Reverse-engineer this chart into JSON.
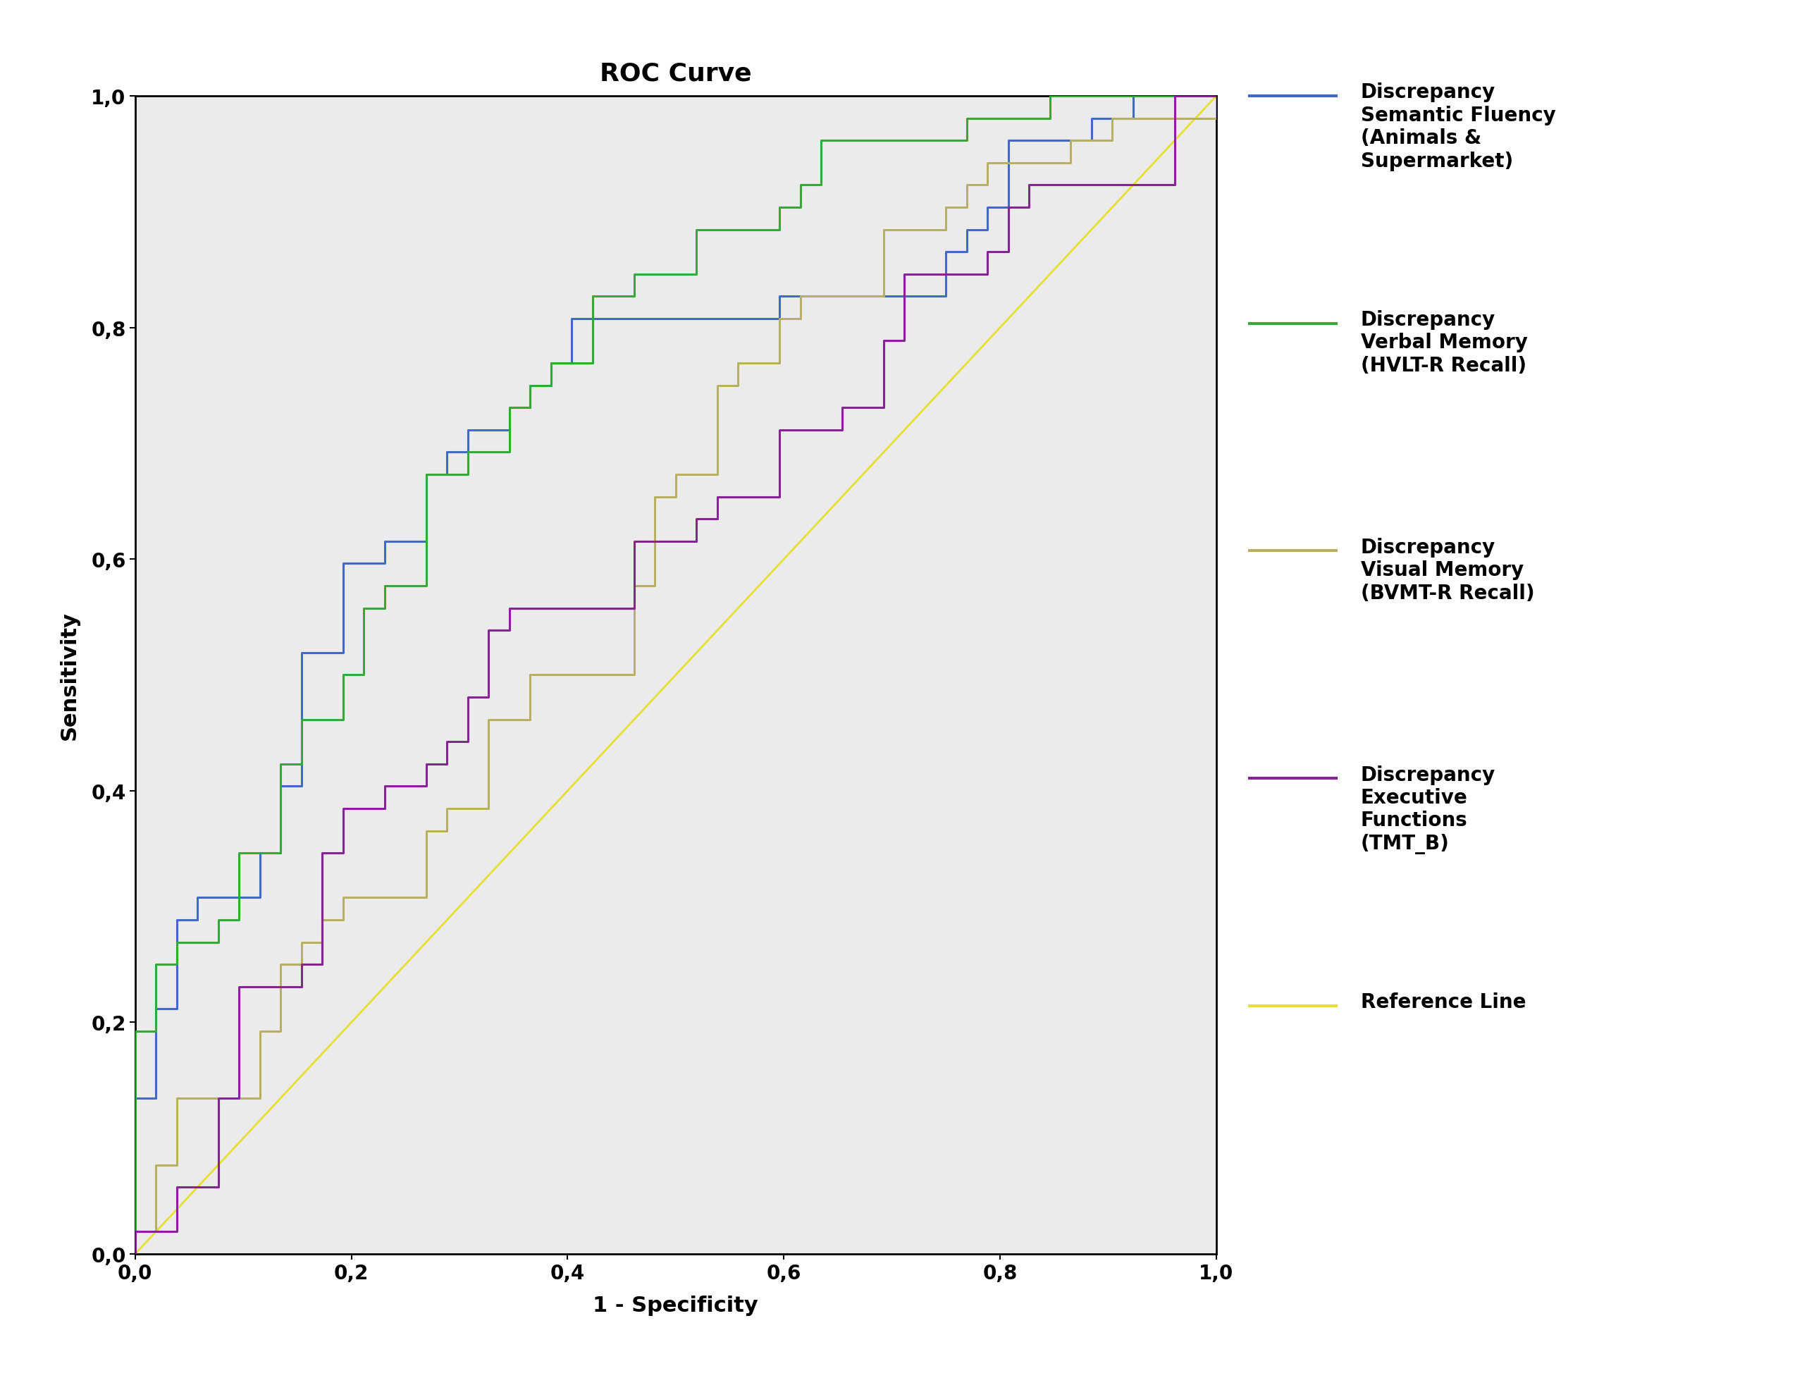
{
  "title": "ROC Curve",
  "xlabel": "1 - Specificity",
  "ylabel": "Sensitivity",
  "xlim": [
    0.0,
    1.0
  ],
  "ylim": [
    0.0,
    1.0
  ],
  "xticks": [
    0.0,
    0.2,
    0.4,
    0.6,
    0.8,
    1.0
  ],
  "yticks": [
    0.0,
    0.2,
    0.4,
    0.6,
    0.8,
    1.0
  ],
  "xtick_labels": [
    "0,0",
    "0,2",
    "0,4",
    "0,6",
    "0,8",
    "1,0"
  ],
  "ytick_labels": [
    "0,0",
    "0,2",
    "0,4",
    "0,6",
    "0,8",
    "1,0"
  ],
  "background_color": "#ebebeb",
  "figure_background": "#ffffff",
  "title_fontsize": 26,
  "axis_label_fontsize": 22,
  "tick_fontsize": 20,
  "legend_fontsize": 20,
  "curves": [
    {
      "label": "Discrepancy\nSemantic Fluency\n(Animals &\nSupermarket)",
      "color": "#4169c8",
      "linewidth": 2.2
    },
    {
      "label": "Discrepancy\nVerbal Memory\n(HVLT-R Recall)",
      "color": "#33aa33",
      "linewidth": 2.2
    },
    {
      "label": "Discrepancy\nVisual Memory\n(BVMT-R Recall)",
      "color": "#b8b060",
      "linewidth": 2.2
    },
    {
      "label": "Discrepancy\nExecutive\nFunctions\n(TMT_B)",
      "color": "#882299",
      "linewidth": 2.2
    },
    {
      "label": "Reference Line",
      "color": "#e8e030",
      "linewidth": 2.0
    }
  ]
}
